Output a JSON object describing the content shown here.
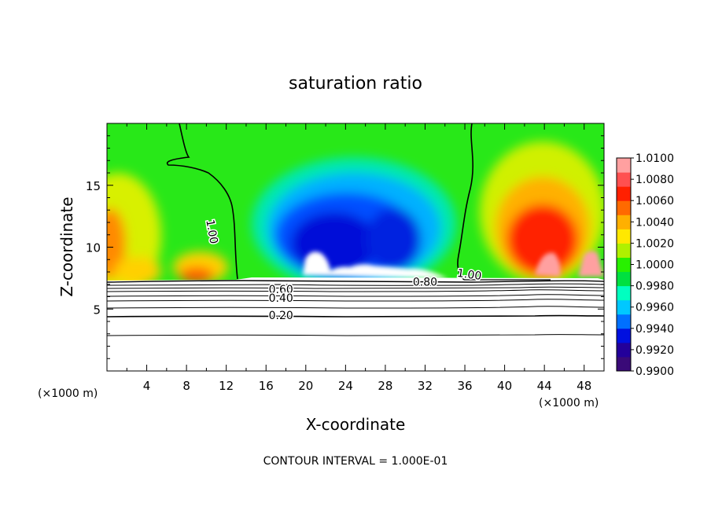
{
  "chart_data": {
    "type": "heatmap",
    "title": "saturation ratio",
    "xlabel": "X-coordinate",
    "ylabel": "Z-coordinate",
    "x_unit": "(×1000 m)",
    "x_unit_right": "(×1000 m)",
    "xlim": [
      0,
      50
    ],
    "ylim": [
      0,
      20
    ],
    "x_ticks": [
      4,
      8,
      12,
      16,
      20,
      24,
      28,
      32,
      36,
      40,
      44,
      48
    ],
    "y_ticks": [
      5,
      10,
      15
    ],
    "colorbar": {
      "min": 0.99,
      "max": 1.01,
      "labels": [
        "1.0100",
        "1.0080",
        "1.0060",
        "1.0040",
        "1.0020",
        "1.0000",
        "0.9980",
        "0.9960",
        "0.9940",
        "0.9920",
        "0.9900"
      ],
      "colors": [
        "#3a0a78",
        "#23009a",
        "#0010e0",
        "#0070ff",
        "#00c8ff",
        "#00ffc0",
        "#00e040",
        "#28f000",
        "#b0f000",
        "#ffe800",
        "#ffb000",
        "#ff6a00",
        "#ff2000",
        "#ff5050",
        "#ffa0a0"
      ]
    },
    "contour_labels": [
      {
        "text": "1.00",
        "x": 10.2,
        "z": 11.2,
        "rotate": 80
      },
      {
        "text": "1.00",
        "x": 36.4,
        "z": 7.5,
        "rotate": 8
      },
      {
        "text": "0.80",
        "x": 32.0,
        "z": 6.9,
        "rotate": 0
      },
      {
        "text": "0.60",
        "x": 17.5,
        "z": 6.3,
        "rotate": 0
      },
      {
        "text": "0.40",
        "x": 17.5,
        "z": 5.6,
        "rotate": 0
      },
      {
        "text": "0.20",
        "x": 17.5,
        "z": 4.2,
        "rotate": 0
      }
    ],
    "contour_interval_text": "CONTOUR INTERVAL = 1.000E-01"
  }
}
